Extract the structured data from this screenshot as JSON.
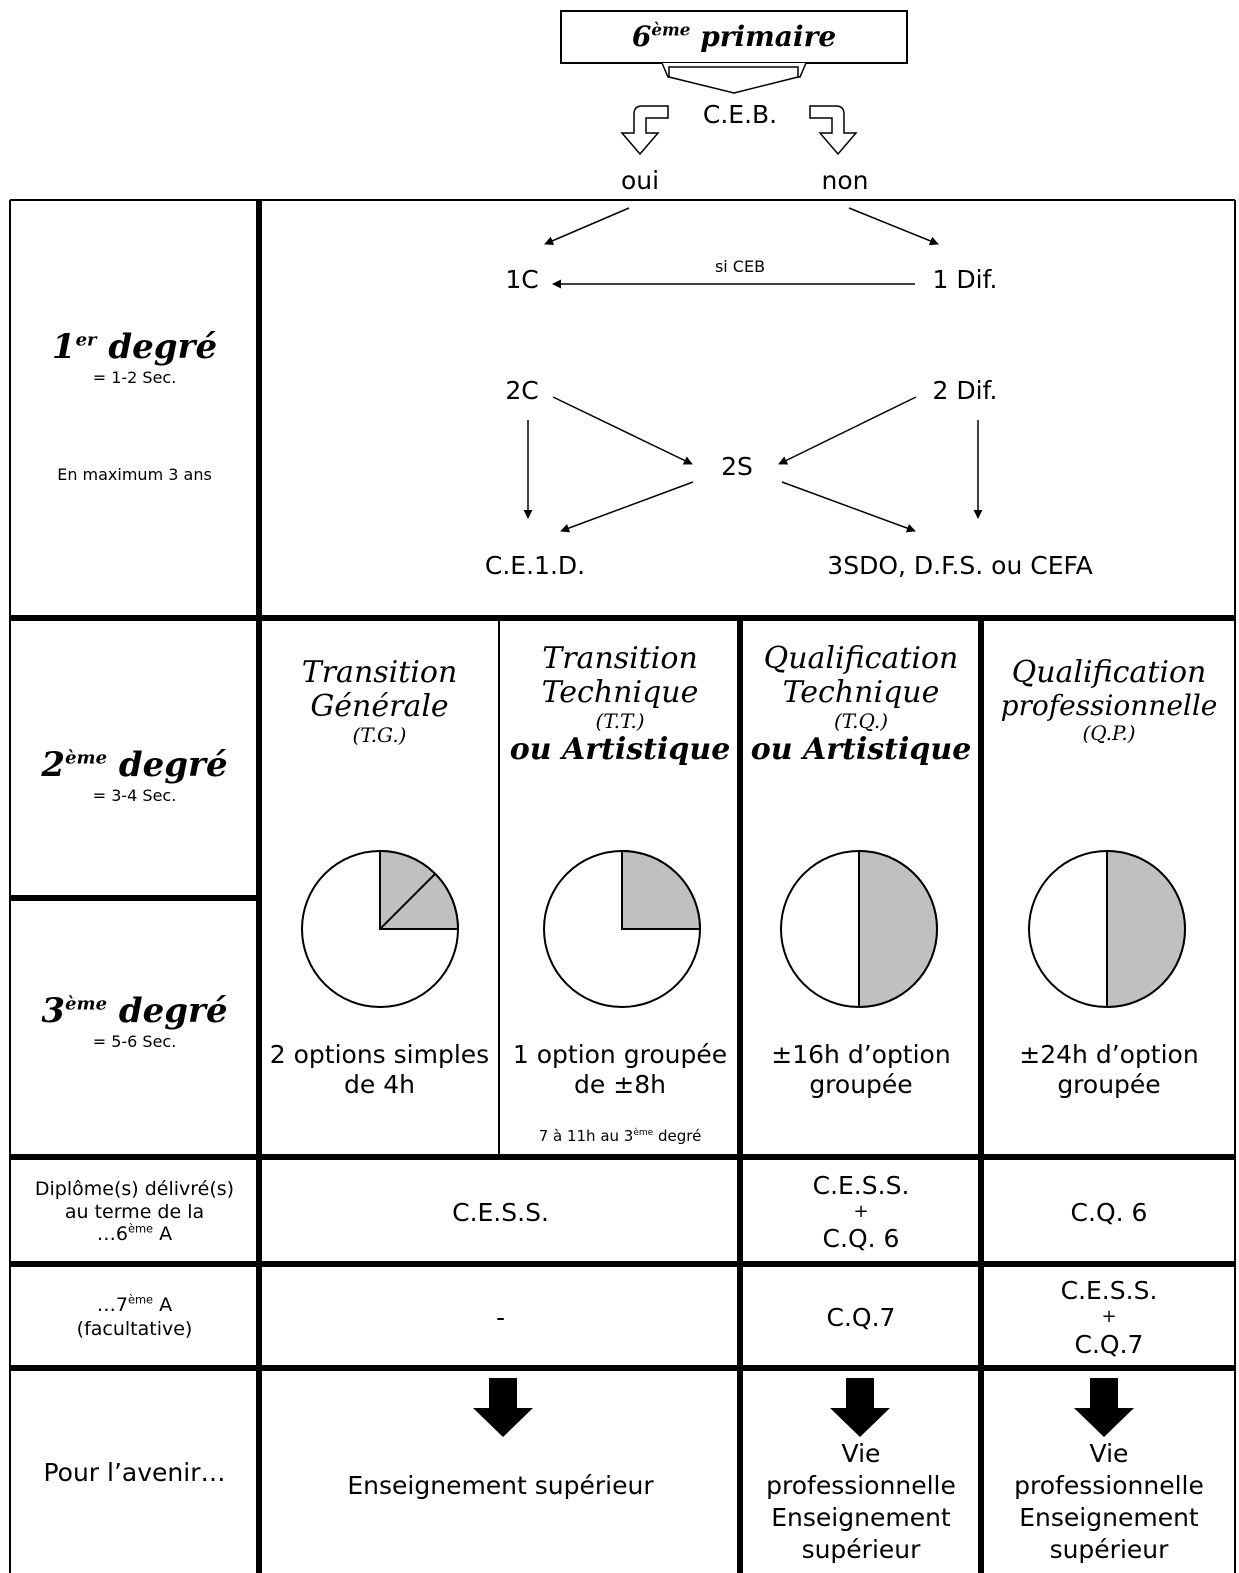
{
  "top": {
    "title": "6ème primaire",
    "title_main": "6",
    "title_sup": "ème",
    "title_rest": " primaire",
    "ceb": "C.E.B.",
    "oui": "oui",
    "non": "non"
  },
  "first_degree": {
    "heading_num": "1",
    "heading_sup": "er",
    "heading_word": " degré",
    "sub": "= 1-2 Sec.",
    "note": "En maximum 3 ans",
    "nodes": {
      "c1": "1C",
      "dif1": "1 Dif.",
      "si_ceb": "si CEB",
      "c2": "2C",
      "dif2": "2 Dif.",
      "s2": "2S",
      "ce1d": "C.E.1.D.",
      "outcome": "3SDO, D.F.S. ou CEFA"
    }
  },
  "second_degree": {
    "heading_num": "2",
    "heading_sup": "ème",
    "heading_word": " degré",
    "sub": "= 3-4 Sec."
  },
  "third_degree": {
    "heading_num": "3",
    "heading_sup": "ème",
    "heading_word": " degré",
    "sub": "= 5-6 Sec."
  },
  "columns": [
    {
      "line1": "Transition",
      "line2": "Générale",
      "abbr": "(T.G.)",
      "line3": "",
      "option_l1": "2 options simples",
      "option_l2": "de 4h",
      "note": "",
      "note_sup": "",
      "note_end": ""
    },
    {
      "line1": "Transition",
      "line2": "Technique",
      "abbr": "(T.T.)",
      "line3": "ou Artistique",
      "option_l1": "1 option groupée",
      "option_l2": "de ±8h",
      "note": "7 à 11h au 3",
      "note_sup": "ème",
      "note_end": " degré"
    },
    {
      "line1": "Qualification",
      "line2": "Technique",
      "abbr": "(T.Q.)",
      "line3": "ou Artistique",
      "option_l1": "±16h d’option",
      "option_l2": "groupée",
      "note": "",
      "note_sup": "",
      "note_end": ""
    },
    {
      "line1": "Qualification",
      "line2": "professionnelle",
      "abbr": "(Q.P.)",
      "line3": "",
      "option_l1": "±24h d’option",
      "option_l2": "groupée",
      "note": "",
      "note_sup": "",
      "note_end": ""
    }
  ],
  "pie_colors": {
    "shaded": "#c0c0c0",
    "empty": "#ffffff"
  },
  "pie_shares": [
    {
      "shaded_fraction": 0.25,
      "split_quarter": true
    },
    {
      "shaded_fraction": 0.25,
      "split_quarter": false
    },
    {
      "shaded_fraction": 0.5,
      "split_quarter": false
    },
    {
      "shaded_fraction": 0.5,
      "split_quarter": false
    }
  ],
  "diplomas_6": {
    "label_l1": "Diplôme(s) délivré(s)",
    "label_l2": "au terme de la",
    "label_l3": "…6",
    "label_sup": "ème",
    "label_end": " A",
    "tg_tt": "C.E.S.S.",
    "tq_l1": "C.E.S.S.",
    "tq_l2": "+",
    "tq_l3": "C.Q. 6",
    "qp": "C.Q. 6"
  },
  "diplomas_7": {
    "label_l1": "…7",
    "label_sup": "ème",
    "label_end": " A",
    "label_l2": "(facultative)",
    "tg_tt": "-",
    "tq": "C.Q.7",
    "qp_l1": "C.E.S.S.",
    "qp_l2": "+",
    "qp_l3": "C.Q.7"
  },
  "future": {
    "label": "Pour l’avenir…",
    "tg_tt": "Enseignement supérieur",
    "tq_l1": "Vie",
    "tq_l2": "professionnelle",
    "tq_l3": "Enseignement",
    "tq_l4": "supérieur",
    "qp_l1": "Vie",
    "qp_l2": "professionnelle",
    "qp_l3": "Enseignement",
    "qp_l4": "supérieur"
  }
}
